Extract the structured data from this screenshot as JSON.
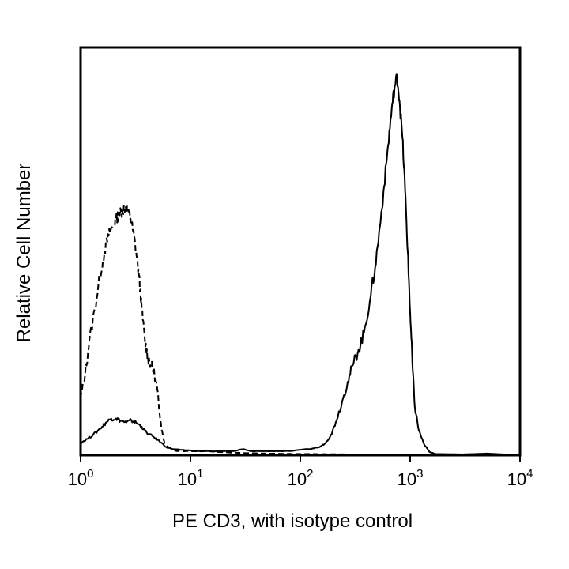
{
  "chart_data": {
    "type": "line",
    "title": "",
    "xlabel": "PE CD3, with isotype control",
    "ylabel": "Relative Cell Number",
    "x_scale": "log",
    "xlim": [
      1,
      10000
    ],
    "ylim": [
      0,
      100
    ],
    "grid": false,
    "legend": "none",
    "x_ticks": [
      {
        "value": 1,
        "base": "10",
        "exp": "0"
      },
      {
        "value": 10,
        "base": "10",
        "exp": "1"
      },
      {
        "value": 100,
        "base": "10",
        "exp": "2"
      },
      {
        "value": 1000,
        "base": "10",
        "exp": "3"
      },
      {
        "value": 10000,
        "base": "10",
        "exp": "4"
      }
    ],
    "series": [
      {
        "style": "dashed",
        "color": "#000000",
        "points": [
          [
            1.0,
            14
          ],
          [
            1.1,
            20
          ],
          [
            1.2,
            28
          ],
          [
            1.35,
            36
          ],
          [
            1.5,
            44
          ],
          [
            1.65,
            50
          ],
          [
            1.8,
            54
          ],
          [
            1.95,
            56
          ],
          [
            2.1,
            58
          ],
          [
            2.25,
            59
          ],
          [
            2.4,
            60
          ],
          [
            2.55,
            61
          ],
          [
            2.7,
            60
          ],
          [
            2.85,
            58
          ],
          [
            3.0,
            55
          ],
          [
            3.2,
            50
          ],
          [
            3.4,
            44
          ],
          [
            3.6,
            36
          ],
          [
            3.85,
            28
          ],
          [
            4.1,
            24
          ],
          [
            4.4,
            22
          ],
          [
            4.7,
            20
          ],
          [
            5.0,
            16
          ],
          [
            5.25,
            10
          ],
          [
            5.5,
            6
          ],
          [
            5.8,
            3
          ],
          [
            6.3,
            2
          ],
          [
            7.5,
            1
          ],
          [
            9.5,
            1
          ],
          [
            14,
            1
          ],
          [
            25,
            0.6
          ],
          [
            50,
            0.4
          ],
          [
            100,
            0.3
          ],
          [
            300,
            0.2
          ],
          [
            1000,
            0.1
          ],
          [
            10000,
            0
          ]
        ]
      },
      {
        "style": "solid",
        "color": "#000000",
        "points": [
          [
            1.0,
            3
          ],
          [
            1.15,
            4
          ],
          [
            1.3,
            5
          ],
          [
            1.5,
            6.5
          ],
          [
            1.7,
            8
          ],
          [
            1.9,
            9
          ],
          [
            2.1,
            9
          ],
          [
            2.3,
            8.5
          ],
          [
            2.6,
            8
          ],
          [
            2.9,
            8.5
          ],
          [
            3.2,
            8
          ],
          [
            3.6,
            7
          ],
          [
            4.0,
            5.5
          ],
          [
            4.6,
            4.5
          ],
          [
            5.2,
            3.5
          ],
          [
            6.0,
            2
          ],
          [
            7.0,
            1.5
          ],
          [
            9.0,
            1.2
          ],
          [
            12,
            1
          ],
          [
            18,
            1
          ],
          [
            25,
            1
          ],
          [
            30,
            1.5
          ],
          [
            35,
            1
          ],
          [
            45,
            1
          ],
          [
            60,
            1
          ],
          [
            80,
            1
          ],
          [
            120,
            1.5
          ],
          [
            150,
            2
          ],
          [
            170,
            3
          ],
          [
            190,
            5
          ],
          [
            210,
            8
          ],
          [
            240,
            13
          ],
          [
            270,
            18
          ],
          [
            300,
            22
          ],
          [
            340,
            26
          ],
          [
            380,
            30
          ],
          [
            430,
            38
          ],
          [
            480,
            46
          ],
          [
            530,
            56
          ],
          [
            580,
            66
          ],
          [
            630,
            76
          ],
          [
            680,
            85
          ],
          [
            720,
            90
          ],
          [
            760,
            93
          ],
          [
            800,
            87
          ],
          [
            850,
            78
          ],
          [
            900,
            65
          ],
          [
            950,
            50
          ],
          [
            1000,
            35
          ],
          [
            1050,
            22
          ],
          [
            1100,
            12
          ],
          [
            1200,
            6
          ],
          [
            1350,
            2.5
          ],
          [
            1500,
            0.8
          ],
          [
            1700,
            0.3
          ],
          [
            3000,
            0.2
          ],
          [
            5000,
            0.4
          ],
          [
            10000,
            0
          ]
        ]
      }
    ]
  }
}
